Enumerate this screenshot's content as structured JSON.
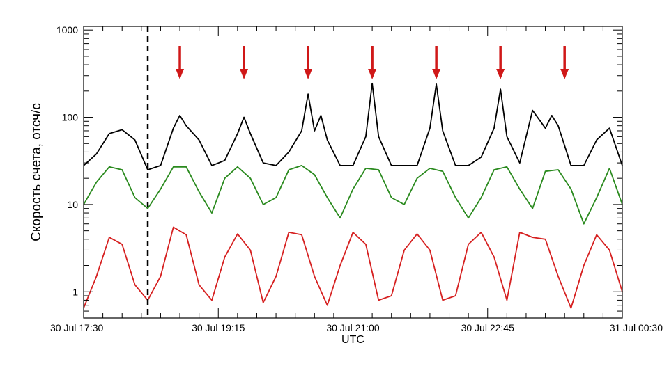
{
  "chart_data": {
    "type": "line",
    "title": "",
    "xlabel": "UTC",
    "ylabel": "Скорость счета, отсч/с",
    "y_scale": "log",
    "ylim": [
      0.5,
      1100
    ],
    "xlim": [
      "30 Jul 17:30",
      "31 Jul 00:30"
    ],
    "x_tick_labels": [
      "30 Jul 17:30",
      "30 Jul 19:15",
      "30 Jul 21:00",
      "30 Jul 22:45",
      "31 Jul 00:30"
    ],
    "y_tick_labels": [
      "1",
      "10",
      "100",
      "1000"
    ],
    "grid": false,
    "marker_line": {
      "time": "30 Jul 18:20",
      "style": "dashed",
      "color": "#000000"
    },
    "arrows": {
      "color": "#d01818",
      "times": [
        "30 Jul 18:45",
        "30 Jul 19:35",
        "30 Jul 20:25",
        "30 Jul 21:15",
        "30 Jul 22:05",
        "30 Jul 22:55",
        "30 Jul 23:45"
      ]
    },
    "series": [
      {
        "color": "#000000",
        "x": [
          "30 Jul 17:30",
          "30 Jul 17:40",
          "30 Jul 17:50",
          "30 Jul 18:00",
          "30 Jul 18:10",
          "30 Jul 18:20",
          "30 Jul 18:30",
          "30 Jul 18:40",
          "30 Jul 18:45",
          "30 Jul 18:50",
          "30 Jul 19:00",
          "30 Jul 19:10",
          "30 Jul 19:20",
          "30 Jul 19:30",
          "30 Jul 19:35",
          "30 Jul 19:40",
          "30 Jul 19:50",
          "30 Jul 20:00",
          "30 Jul 20:10",
          "30 Jul 20:20",
          "30 Jul 20:25",
          "30 Jul 20:30",
          "30 Jul 20:35",
          "30 Jul 20:40",
          "30 Jul 20:50",
          "30 Jul 21:00",
          "30 Jul 21:10",
          "30 Jul 21:15",
          "30 Jul 21:20",
          "30 Jul 21:30",
          "30 Jul 21:40",
          "30 Jul 21:50",
          "30 Jul 22:00",
          "30 Jul 22:05",
          "30 Jul 22:10",
          "30 Jul 22:20",
          "30 Jul 22:30",
          "30 Jul 22:40",
          "30 Jul 22:50",
          "30 Jul 22:55",
          "30 Jul 23:00",
          "30 Jul 23:10",
          "30 Jul 23:20",
          "30 Jul 23:30",
          "30 Jul 23:35",
          "30 Jul 23:40",
          "30 Jul 23:50",
          "31 Jul 00:00",
          "31 Jul 00:10",
          "31 Jul 00:20",
          "31 Jul 00:30"
        ],
        "values": [
          28,
          38,
          65,
          72,
          55,
          25,
          28,
          75,
          105,
          80,
          55,
          28,
          32,
          65,
          100,
          65,
          30,
          28,
          40,
          70,
          185,
          70,
          105,
          55,
          28,
          28,
          60,
          245,
          60,
          28,
          28,
          28,
          75,
          240,
          70,
          28,
          28,
          35,
          75,
          210,
          60,
          30,
          120,
          75,
          105,
          80,
          28,
          28,
          55,
          75,
          28
        ]
      },
      {
        "color": "#2a8a1e",
        "x": [
          "30 Jul 17:30",
          "30 Jul 17:40",
          "30 Jul 17:50",
          "30 Jul 18:00",
          "30 Jul 18:10",
          "30 Jul 18:20",
          "30 Jul 18:30",
          "30 Jul 18:40",
          "30 Jul 18:50",
          "30 Jul 19:00",
          "30 Jul 19:10",
          "30 Jul 19:20",
          "30 Jul 19:30",
          "30 Jul 19:40",
          "30 Jul 19:50",
          "30 Jul 20:00",
          "30 Jul 20:10",
          "30 Jul 20:20",
          "30 Jul 20:30",
          "30 Jul 20:40",
          "30 Jul 20:50",
          "30 Jul 21:00",
          "30 Jul 21:10",
          "30 Jul 21:20",
          "30 Jul 21:30",
          "30 Jul 21:40",
          "30 Jul 21:50",
          "30 Jul 22:00",
          "30 Jul 22:10",
          "30 Jul 22:20",
          "30 Jul 22:30",
          "30 Jul 22:40",
          "30 Jul 22:50",
          "30 Jul 23:00",
          "30 Jul 23:10",
          "30 Jul 23:20",
          "30 Jul 23:30",
          "30 Jul 23:40",
          "30 Jul 23:50",
          "31 Jul 00:00",
          "31 Jul 00:10",
          "31 Jul 00:20",
          "31 Jul 00:30"
        ],
        "values": [
          10,
          18,
          27,
          25,
          12,
          9,
          15,
          27,
          27,
          14,
          8,
          20,
          27,
          20,
          10,
          12,
          25,
          28,
          22,
          12,
          7,
          15,
          26,
          25,
          12,
          10,
          20,
          26,
          24,
          12,
          7,
          12,
          25,
          27,
          15,
          9,
          24,
          25,
          15,
          6,
          12,
          26,
          10
        ]
      },
      {
        "color": "#d62020",
        "x": [
          "30 Jul 17:30",
          "30 Jul 17:40",
          "30 Jul 17:50",
          "30 Jul 18:00",
          "30 Jul 18:10",
          "30 Jul 18:20",
          "30 Jul 18:30",
          "30 Jul 18:40",
          "30 Jul 18:50",
          "30 Jul 19:00",
          "30 Jul 19:10",
          "30 Jul 19:20",
          "30 Jul 19:30",
          "30 Jul 19:40",
          "30 Jul 19:50",
          "30 Jul 20:00",
          "30 Jul 20:10",
          "30 Jul 20:20",
          "30 Jul 20:30",
          "30 Jul 20:40",
          "30 Jul 20:50",
          "30 Jul 21:00",
          "30 Jul 21:10",
          "30 Jul 21:20",
          "30 Jul 21:30",
          "30 Jul 21:40",
          "30 Jul 21:50",
          "30 Jul 22:00",
          "30 Jul 22:10",
          "30 Jul 22:20",
          "30 Jul 22:30",
          "30 Jul 22:40",
          "30 Jul 22:50",
          "30 Jul 23:00",
          "30 Jul 23:10",
          "30 Jul 23:20",
          "30 Jul 23:30",
          "30 Jul 23:40",
          "30 Jul 23:50",
          "31 Jul 00:00",
          "31 Jul 00:10",
          "31 Jul 00:20",
          "31 Jul 00:30"
        ],
        "values": [
          0.65,
          1.5,
          4.2,
          3.5,
          1.2,
          0.8,
          1.5,
          5.5,
          4.5,
          1.2,
          0.8,
          2.5,
          4.6,
          3.0,
          0.75,
          1.5,
          4.8,
          4.5,
          1.5,
          0.7,
          2.0,
          4.8,
          3.5,
          0.8,
          0.9,
          3.0,
          4.6,
          3.0,
          0.8,
          0.9,
          3.5,
          4.8,
          2.5,
          0.8,
          4.8,
          4.2,
          4.0,
          1.5,
          0.65,
          2.0,
          4.5,
          3.0,
          1.0
        ]
      }
    ]
  }
}
